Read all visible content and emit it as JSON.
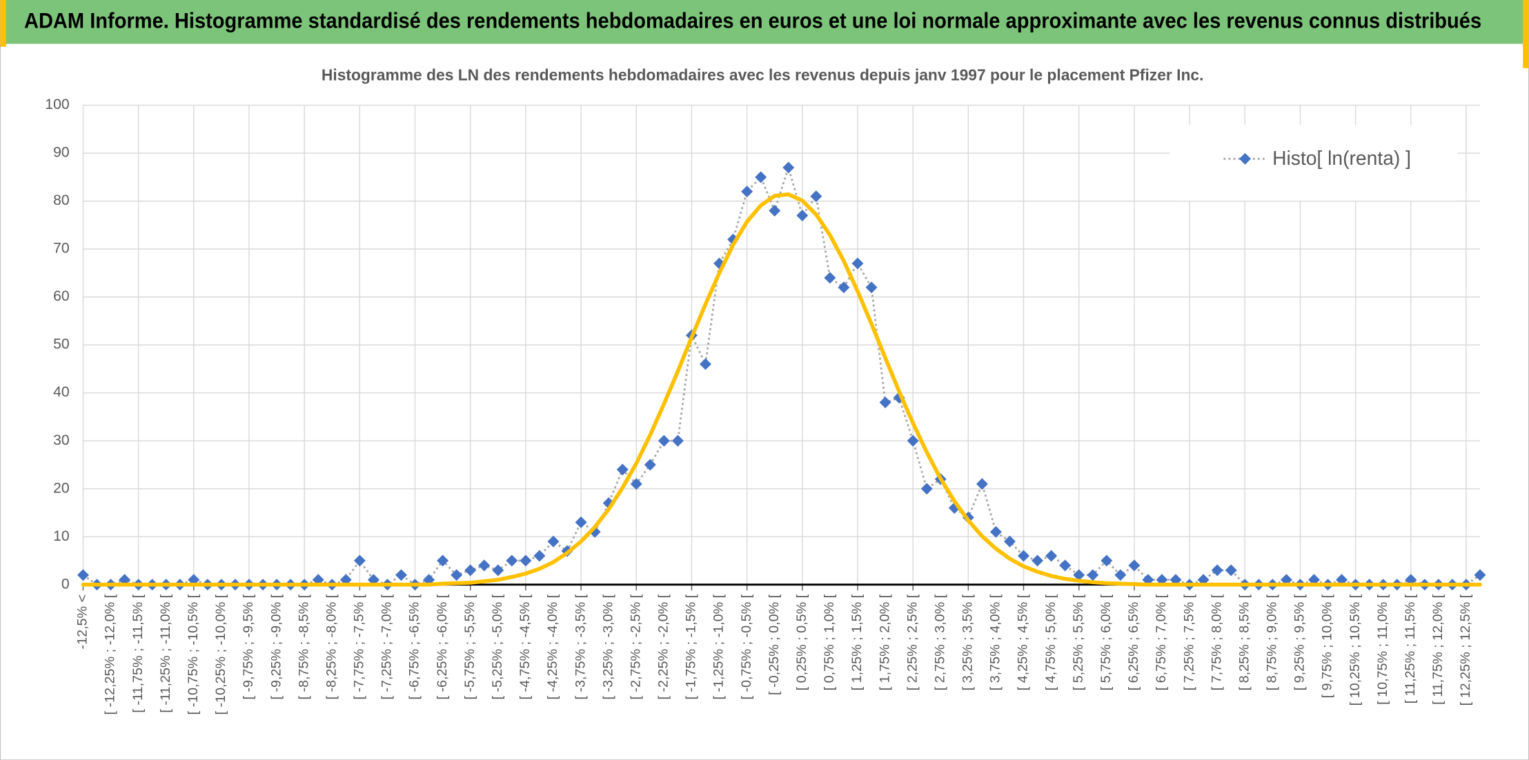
{
  "header": {
    "title": "ADAM Informe. Histogramme standardisé des rendements hebdomadaires en euros et une loi normale approximante avec les revenus connus distribués"
  },
  "chart_data": {
    "type": "line",
    "title": "Histogramme des LN des rendements hebdomadaires avec les revenus depuis janv 1997 pour le placement Pfizer Inc.",
    "categories": [
      "-12,5% <",
      null,
      "[ -12,25% ; -12,0% [",
      null,
      "[ -11,75% ; -11,5% [",
      null,
      "[ -11,25% ; -11,0% [",
      null,
      "[ -10,75% ; -10,5% [",
      null,
      "[ -10,25% ; -10,0% [",
      null,
      "[ -9,75% ; -9,5% [",
      null,
      "[ -9,25% ; -9,0% [",
      null,
      "[ -8,75% ; -8,5% [",
      null,
      "[ -8,25% ; -8,0% [",
      null,
      "[ -7,75% ; -7,5% [",
      null,
      "[ -7,25% ; -7,0% [",
      null,
      "[ -6,75% ; -6,5% [",
      null,
      "[ -6,25% ; -6,0% [",
      null,
      "[ -5,75% ; -5,5% [",
      null,
      "[ -5,25% ; -5,0% [",
      null,
      "[ -4,75% ; -4,5% [",
      null,
      "[ -4,25% ; -4,0% [",
      null,
      "[ -3,75% ; -3,5% [",
      null,
      "[ -3,25% ; -3,0% [",
      null,
      "[ -2,75% ; -2,5% [",
      null,
      "[ -2,25% ; -2,0% [",
      null,
      "[ -1,75% ; -1,5% [",
      null,
      "[ -1,25% ; -1,0% [",
      null,
      "[ -0,75% ; -0,5% [",
      null,
      "[ -0,25% ; 0,0% [",
      null,
      "[ 0,25% ; 0,5% [",
      null,
      "[ 0,75% ; 1,0% [",
      null,
      "[ 1,25% ; 1,5% [",
      null,
      "[ 1,75% ; 2,0% [",
      null,
      "[ 2,25% ; 2,5% [",
      null,
      "[ 2,75% ; 3,0% [",
      null,
      "[ 3,25% ; 3,5% [",
      null,
      "[ 3,75% ; 4,0% [",
      null,
      "[ 4,25% ; 4,5% [",
      null,
      "[ 4,75% ; 5,0% [",
      null,
      "[ 5,25% ; 5,5% [",
      null,
      "[ 5,75% ; 6,0% [",
      null,
      "[ 6,25% ; 6,5% [",
      null,
      "[ 6,75% ; 7,0% [",
      null,
      "[ 7,25% ; 7,5% [",
      null,
      "[ 7,75% ; 8,0% [",
      null,
      "[ 8,25% ; 8,5% [",
      null,
      "[ 8,75% ; 9,0% [",
      null,
      "[ 9,25% ; 9,5% [",
      null,
      "[ 9,75% ; 10,0% [",
      null,
      "[ 10,25% ; 10,5% [",
      null,
      "[ 10,75% ; 11,0% [",
      null,
      "[ 11,25% ; 11,5% [",
      null,
      "[ 11,75% ; 12,0% [",
      null,
      "[ 12,25% ; 12,5% [",
      null
    ],
    "series": [
      {
        "name": "Histo[ ln(renta) ]",
        "color": "#4472c4",
        "line_color": "#a5a5a5",
        "values": [
          2,
          0,
          0,
          1,
          0,
          0,
          0,
          0,
          1,
          0,
          0,
          0,
          0,
          0,
          0,
          0,
          0,
          1,
          0,
          1,
          5,
          1,
          0,
          2,
          0,
          1,
          5,
          2,
          3,
          4,
          3,
          5,
          5,
          6,
          9,
          7,
          13,
          11,
          17,
          24,
          21,
          25,
          30,
          30,
          52,
          46,
          67,
          72,
          82,
          85,
          78,
          87,
          77,
          81,
          64,
          62,
          67,
          62,
          38,
          39,
          30,
          20,
          22,
          16,
          14,
          21,
          11,
          9,
          6,
          5,
          6,
          4,
          2,
          2,
          5,
          2,
          4,
          1,
          1,
          1,
          0,
          1,
          3,
          3,
          0,
          0,
          0,
          1,
          0,
          1,
          0,
          1,
          0,
          0,
          0,
          0,
          1,
          0,
          0,
          0,
          0,
          2
        ]
      },
      {
        "color": "#ffc000",
        "values": [
          0,
          0,
          0,
          0,
          0,
          0,
          0,
          0,
          0,
          0,
          0,
          0,
          0,
          0,
          0,
          0,
          0,
          0,
          0,
          0,
          0,
          0,
          0,
          0,
          0,
          0,
          0.2,
          0.3,
          0.4,
          0.7,
          1.0,
          1.6,
          2.3,
          3.3,
          4.7,
          6.6,
          9.0,
          12.0,
          15.7,
          20.2,
          25.3,
          31.2,
          37.7,
          44.5,
          51.6,
          58.5,
          65.0,
          70.9,
          75.7,
          79.1,
          81.1,
          81.4,
          80.1,
          77.2,
          72.9,
          67.5,
          61.2,
          54.4,
          47.3,
          40.3,
          33.7,
          27.6,
          22.1,
          17.4,
          13.4,
          10.1,
          7.5,
          5.4,
          3.8,
          2.7,
          1.8,
          1.2,
          0.8,
          0.5,
          0.3,
          0.2,
          0.1,
          0,
          0,
          0,
          0,
          0,
          0,
          0,
          0,
          0,
          0,
          0,
          0,
          0,
          0,
          0,
          0,
          0,
          0,
          0,
          0,
          0,
          0,
          0,
          0,
          0
        ]
      }
    ],
    "ylim": [
      0,
      100
    ],
    "yticks": [
      0,
      10,
      20,
      30,
      40,
      50,
      60,
      70,
      80,
      90,
      100
    ],
    "grid": true,
    "legend": "upper right"
  }
}
